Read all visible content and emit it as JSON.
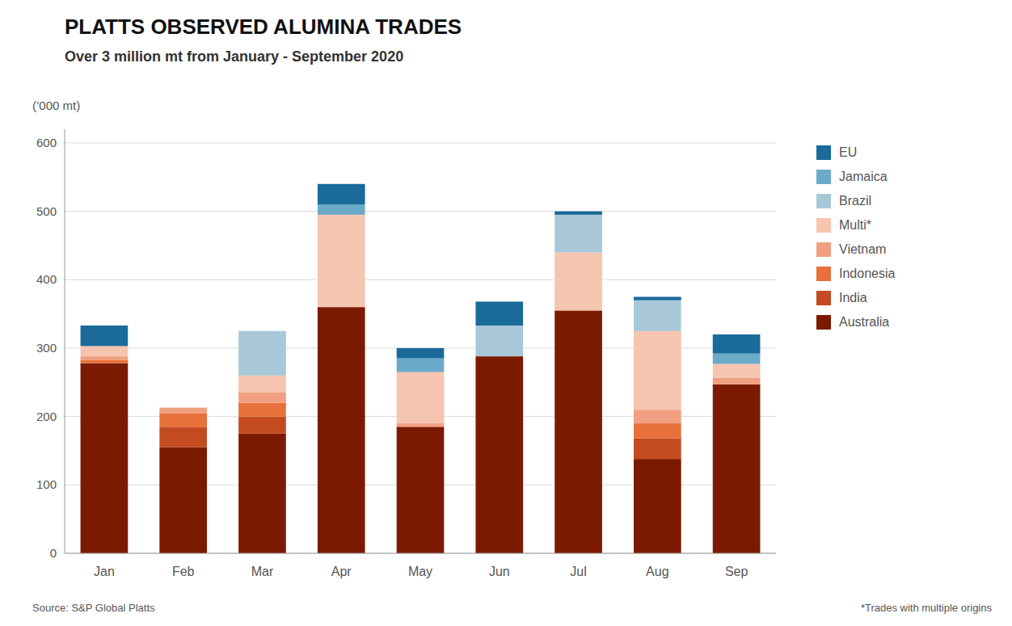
{
  "chart_data": {
    "type": "bar",
    "stacked": true,
    "title": "PLATTS OBSERVED ALUMINA TRADES",
    "subtitle": "Over 3 million mt from January - September 2020",
    "ylabel": "(’000 mt)",
    "categories": [
      "Jan",
      "Feb",
      "Mar",
      "Apr",
      "May",
      "Jun",
      "Jul",
      "Aug",
      "Sep"
    ],
    "series": [
      {
        "name": "Australia",
        "color": "#7B1A00",
        "values": [
          278,
          155,
          175,
          360,
          185,
          288,
          355,
          138,
          247
        ]
      },
      {
        "name": "India",
        "color": "#C44B20",
        "values": [
          0,
          30,
          25,
          0,
          0,
          0,
          0,
          30,
          0
        ]
      },
      {
        "name": "Indonesia",
        "color": "#E8703A",
        "values": [
          5,
          20,
          20,
          0,
          0,
          0,
          0,
          22,
          0
        ]
      },
      {
        "name": "Vietnam",
        "color": "#F0A080",
        "values": [
          5,
          8,
          15,
          0,
          5,
          0,
          0,
          20,
          10
        ]
      },
      {
        "name": "Multi*",
        "color": "#F5C5B0",
        "values": [
          15,
          0,
          25,
          135,
          75,
          0,
          85,
          115,
          20
        ]
      },
      {
        "name": "Brazil",
        "color": "#A8C8D8",
        "values": [
          0,
          0,
          65,
          0,
          0,
          45,
          55,
          45,
          0
        ]
      },
      {
        "name": "Jamaica",
        "color": "#6BAAC8",
        "values": [
          0,
          0,
          0,
          15,
          20,
          0,
          0,
          0,
          15
        ]
      },
      {
        "name": "EU",
        "color": "#1A6B9A",
        "values": [
          30,
          0,
          0,
          30,
          15,
          35,
          5,
          5,
          28
        ]
      }
    ],
    "ylim": [
      0,
      620
    ],
    "yticks": [
      0,
      100,
      200,
      300,
      400,
      500,
      600
    ],
    "grid": true,
    "legend": "right",
    "annotations": [
      "Source: S&P Global Platts",
      "*Trades with multiple origins"
    ]
  }
}
